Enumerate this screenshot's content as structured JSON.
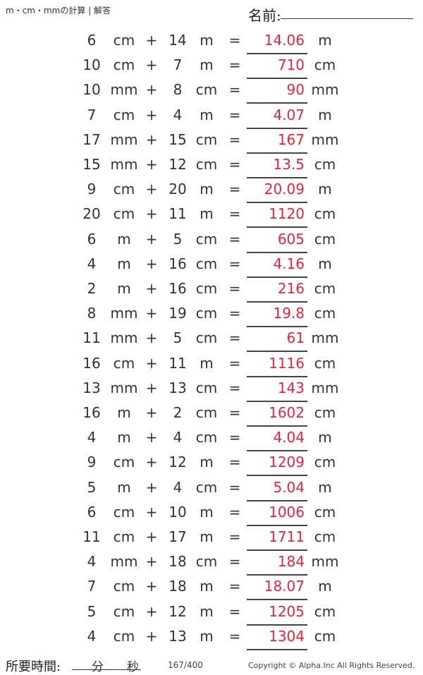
{
  "header": {
    "title": "m・cm・mmの計算 | 解答",
    "name_label": "名前:"
  },
  "problems": [
    {
      "a": "6",
      "ua": "cm",
      "b": "14",
      "ub": "m",
      "answer": "14.06",
      "unit": "m"
    },
    {
      "a": "10",
      "ua": "cm",
      "b": "7",
      "ub": "m",
      "answer": "710",
      "unit": "cm"
    },
    {
      "a": "10",
      "ua": "mm",
      "b": "8",
      "ub": "cm",
      "answer": "90",
      "unit": "mm"
    },
    {
      "a": "7",
      "ua": "cm",
      "b": "4",
      "ub": "m",
      "answer": "4.07",
      "unit": "m"
    },
    {
      "a": "17",
      "ua": "mm",
      "b": "15",
      "ub": "cm",
      "answer": "167",
      "unit": "mm"
    },
    {
      "a": "15",
      "ua": "mm",
      "b": "12",
      "ub": "cm",
      "answer": "13.5",
      "unit": "cm"
    },
    {
      "a": "9",
      "ua": "cm",
      "b": "20",
      "ub": "m",
      "answer": "20.09",
      "unit": "m"
    },
    {
      "a": "20",
      "ua": "cm",
      "b": "11",
      "ub": "m",
      "answer": "1120",
      "unit": "cm"
    },
    {
      "a": "6",
      "ua": "m",
      "b": "5",
      "ub": "cm",
      "answer": "605",
      "unit": "cm"
    },
    {
      "a": "4",
      "ua": "m",
      "b": "16",
      "ub": "cm",
      "answer": "4.16",
      "unit": "m"
    },
    {
      "a": "2",
      "ua": "m",
      "b": "16",
      "ub": "cm",
      "answer": "216",
      "unit": "cm"
    },
    {
      "a": "8",
      "ua": "mm",
      "b": "19",
      "ub": "cm",
      "answer": "19.8",
      "unit": "cm"
    },
    {
      "a": "11",
      "ua": "mm",
      "b": "5",
      "ub": "cm",
      "answer": "61",
      "unit": "mm"
    },
    {
      "a": "16",
      "ua": "cm",
      "b": "11",
      "ub": "m",
      "answer": "1116",
      "unit": "cm"
    },
    {
      "a": "13",
      "ua": "mm",
      "b": "13",
      "ub": "cm",
      "answer": "143",
      "unit": "mm"
    },
    {
      "a": "16",
      "ua": "m",
      "b": "2",
      "ub": "cm",
      "answer": "1602",
      "unit": "cm"
    },
    {
      "a": "4",
      "ua": "m",
      "b": "4",
      "ub": "cm",
      "answer": "4.04",
      "unit": "m"
    },
    {
      "a": "9",
      "ua": "cm",
      "b": "12",
      "ub": "m",
      "answer": "1209",
      "unit": "cm"
    },
    {
      "a": "5",
      "ua": "m",
      "b": "4",
      "ub": "cm",
      "answer": "5.04",
      "unit": "m"
    },
    {
      "a": "6",
      "ua": "cm",
      "b": "10",
      "ub": "m",
      "answer": "1006",
      "unit": "cm"
    },
    {
      "a": "11",
      "ua": "cm",
      "b": "17",
      "ub": "m",
      "answer": "1711",
      "unit": "cm"
    },
    {
      "a": "4",
      "ua": "mm",
      "b": "18",
      "ub": "cm",
      "answer": "184",
      "unit": "mm"
    },
    {
      "a": "7",
      "ua": "cm",
      "b": "18",
      "ub": "m",
      "answer": "18.07",
      "unit": "m"
    },
    {
      "a": "5",
      "ua": "cm",
      "b": "12",
      "ub": "m",
      "answer": "1205",
      "unit": "cm"
    },
    {
      "a": "4",
      "ua": "cm",
      "b": "13",
      "ub": "m",
      "answer": "1304",
      "unit": "cm"
    }
  ],
  "operators": {
    "plus": "+",
    "equals": "="
  },
  "footer": {
    "time_label": "所要時間:",
    "minutes": "分",
    "seconds": "秒",
    "page": "167/400",
    "copyright": "Copyright © Alpha.Inc All Rights Reserved."
  },
  "colors": {
    "answer": "#e8243a"
  }
}
